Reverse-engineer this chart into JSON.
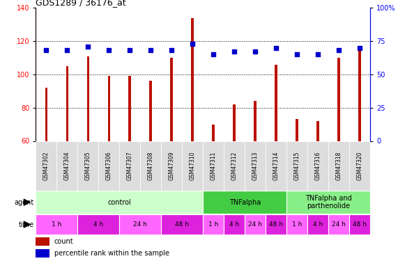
{
  "title": "GDS1289 / 36176_at",
  "samples": [
    "GSM47302",
    "GSM47304",
    "GSM47305",
    "GSM47306",
    "GSM47307",
    "GSM47308",
    "GSM47309",
    "GSM47310",
    "GSM47311",
    "GSM47312",
    "GSM47313",
    "GSM47314",
    "GSM47315",
    "GSM47316",
    "GSM47318",
    "GSM47320"
  ],
  "counts": [
    92,
    105,
    111,
    99,
    99,
    96,
    110,
    134,
    70,
    82,
    84,
    106,
    73,
    72,
    110,
    115
  ],
  "percentiles": [
    68,
    68,
    71,
    68,
    68,
    68,
    68,
    73,
    65,
    67,
    67,
    70,
    65,
    65,
    68,
    70
  ],
  "ylim_left": [
    60,
    140
  ],
  "ylim_right": [
    0,
    100
  ],
  "yticks_left": [
    60,
    80,
    100,
    120,
    140
  ],
  "yticks_right": [
    0,
    25,
    50,
    75,
    100
  ],
  "bar_color": "#bb1100",
  "dot_color": "#0000cc",
  "agent_groups": [
    {
      "label": "control",
      "start": 0,
      "end": 7,
      "color": "#ccffcc"
    },
    {
      "label": "TNFalpha",
      "start": 8,
      "end": 11,
      "color": "#44cc44"
    },
    {
      "label": "TNFalpha and\nparthenolide",
      "start": 12,
      "end": 15,
      "color": "#88ee88"
    }
  ],
  "time_groups": [
    {
      "label": "1 h",
      "start": 0,
      "end": 1,
      "color": "#ff66ff"
    },
    {
      "label": "4 h",
      "start": 2,
      "end": 3,
      "color": "#dd22dd"
    },
    {
      "label": "24 h",
      "start": 4,
      "end": 5,
      "color": "#ff66ff"
    },
    {
      "label": "48 h",
      "start": 6,
      "end": 7,
      "color": "#dd22dd"
    },
    {
      "label": "1 h",
      "start": 8,
      "end": 8,
      "color": "#ff66ff"
    },
    {
      "label": "4 h",
      "start": 9,
      "end": 9,
      "color": "#dd22dd"
    },
    {
      "label": "24 h",
      "start": 10,
      "end": 10,
      "color": "#ff66ff"
    },
    {
      "label": "48 h",
      "start": 11,
      "end": 11,
      "color": "#dd22dd"
    },
    {
      "label": "1 h",
      "start": 12,
      "end": 12,
      "color": "#ff66ff"
    },
    {
      "label": "4 h",
      "start": 13,
      "end": 13,
      "color": "#dd22dd"
    },
    {
      "label": "24 h",
      "start": 14,
      "end": 14,
      "color": "#ff66ff"
    },
    {
      "label": "48 h",
      "start": 15,
      "end": 15,
      "color": "#dd22dd"
    }
  ],
  "legend_count_color": "#bb1100",
  "legend_pct_color": "#0000cc",
  "bg_color": "#ffffff",
  "tick_box_color": "#dddddd"
}
